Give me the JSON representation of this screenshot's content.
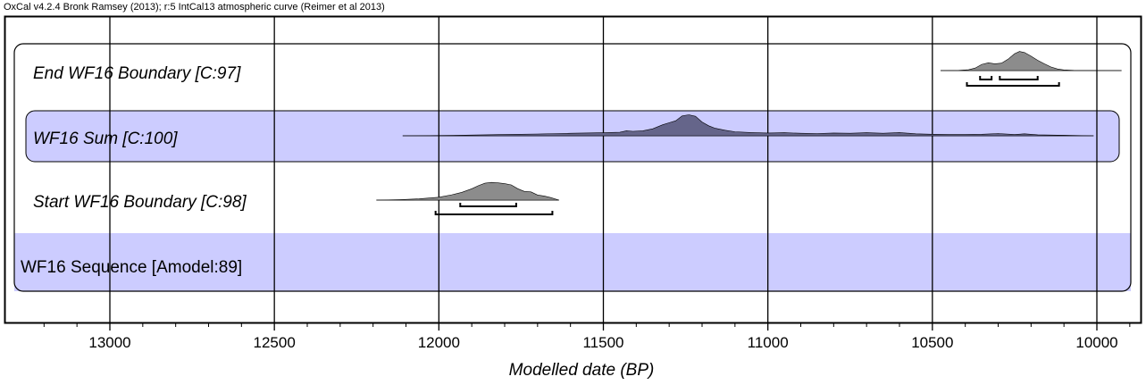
{
  "header": {
    "credit": "OxCal v4.2.4 Bronk Ramsey (2013); r:5 IntCal13 atmospheric curve (Reimer et al 2013)"
  },
  "colors": {
    "band": "#ccccff",
    "distribution": "#8c8c8c",
    "sum": "#65658a",
    "frame": "#000000"
  },
  "chart_data": {
    "type": "area",
    "title": "",
    "xlabel": "Modelled date (BP)",
    "ylabel": "",
    "xlim": [
      13270,
      9860
    ],
    "x_reversed": true,
    "grid": true,
    "major_ticks": [
      13000,
      12500,
      12000,
      11500,
      11000,
      10500,
      10000
    ],
    "tick_labels": [
      "13000",
      "12500",
      "12000",
      "11500",
      "11000",
      "10500",
      "10000"
    ],
    "minor_tick_step": 100,
    "rows": [
      {
        "label": "End WF16 Boundary [C:97]",
        "italic": true,
        "kind": "boundary",
        "range": [
          10475,
          9925
        ],
        "density": [
          [
            10475,
            0
          ],
          [
            10420,
            0.01
          ],
          [
            10390,
            0.04
          ],
          [
            10370,
            0.12
          ],
          [
            10350,
            0.3
          ],
          [
            10330,
            0.38
          ],
          [
            10310,
            0.33
          ],
          [
            10290,
            0.36
          ],
          [
            10270,
            0.55
          ],
          [
            10250,
            0.82
          ],
          [
            10235,
            0.93
          ],
          [
            10220,
            0.88
          ],
          [
            10200,
            0.7
          ],
          [
            10180,
            0.5
          ],
          [
            10160,
            0.33
          ],
          [
            10140,
            0.18
          ],
          [
            10120,
            0.08
          ],
          [
            10100,
            0.03
          ],
          [
            10070,
            0.01
          ],
          [
            10040,
            0.003
          ],
          [
            9925,
            0
          ]
        ],
        "hpd_1sigma": [
          [
            10355,
            10320
          ],
          [
            10295,
            10180
          ]
        ],
        "hpd_2sigma": [
          [
            10395,
            10115
          ]
        ]
      },
      {
        "label": "WF16 Sum [C:100]",
        "italic": true,
        "kind": "sum",
        "range": [
          12110,
          10010
        ],
        "density": [
          [
            12110,
            0
          ],
          [
            11990,
            0.01
          ],
          [
            11900,
            0.03
          ],
          [
            11800,
            0.05
          ],
          [
            11700,
            0.07
          ],
          [
            11600,
            0.1
          ],
          [
            11500,
            0.12
          ],
          [
            11450,
            0.14
          ],
          [
            11430,
            0.2
          ],
          [
            11410,
            0.18
          ],
          [
            11380,
            0.2
          ],
          [
            11350,
            0.28
          ],
          [
            11320,
            0.44
          ],
          [
            11300,
            0.52
          ],
          [
            11280,
            0.6
          ],
          [
            11260,
            0.8
          ],
          [
            11240,
            0.84
          ],
          [
            11220,
            0.78
          ],
          [
            11200,
            0.55
          ],
          [
            11180,
            0.4
          ],
          [
            11160,
            0.3
          ],
          [
            11130,
            0.22
          ],
          [
            11100,
            0.16
          ],
          [
            11050,
            0.13
          ],
          [
            11000,
            0.11
          ],
          [
            10950,
            0.12
          ],
          [
            10900,
            0.1
          ],
          [
            10850,
            0.09
          ],
          [
            10800,
            0.11
          ],
          [
            10750,
            0.1
          ],
          [
            10700,
            0.12
          ],
          [
            10650,
            0.1
          ],
          [
            10600,
            0.13
          ],
          [
            10550,
            0.08
          ],
          [
            10500,
            0.06
          ],
          [
            10450,
            0.05
          ],
          [
            10400,
            0.05
          ],
          [
            10350,
            0.06
          ],
          [
            10300,
            0.09
          ],
          [
            10250,
            0.05
          ],
          [
            10220,
            0.08
          ],
          [
            10180,
            0.04
          ],
          [
            10100,
            0.02
          ],
          [
            10010,
            0
          ]
        ],
        "hpd_1sigma": [],
        "hpd_2sigma": []
      },
      {
        "label": "Start WF16 Boundary [C:98]",
        "italic": true,
        "kind": "boundary",
        "range": [
          12190,
          11635
        ],
        "density": [
          [
            12190,
            0
          ],
          [
            12120,
            0.02
          ],
          [
            12060,
            0.06
          ],
          [
            12000,
            0.14
          ],
          [
            11960,
            0.26
          ],
          [
            11930,
            0.38
          ],
          [
            11900,
            0.55
          ],
          [
            11880,
            0.7
          ],
          [
            11860,
            0.82
          ],
          [
            11840,
            0.86
          ],
          [
            11820,
            0.84
          ],
          [
            11800,
            0.8
          ],
          [
            11780,
            0.74
          ],
          [
            11760,
            0.55
          ],
          [
            11740,
            0.42
          ],
          [
            11720,
            0.4
          ],
          [
            11700,
            0.25
          ],
          [
            11680,
            0.2
          ],
          [
            11660,
            0.12
          ],
          [
            11635,
            0
          ]
        ],
        "hpd_1sigma": [
          [
            11935,
            11765
          ]
        ],
        "hpd_2sigma": [
          [
            12010,
            11655
          ]
        ]
      },
      {
        "label": "WF16 Sequence [Amodel:89]",
        "italic": false,
        "kind": "sequence"
      }
    ]
  }
}
